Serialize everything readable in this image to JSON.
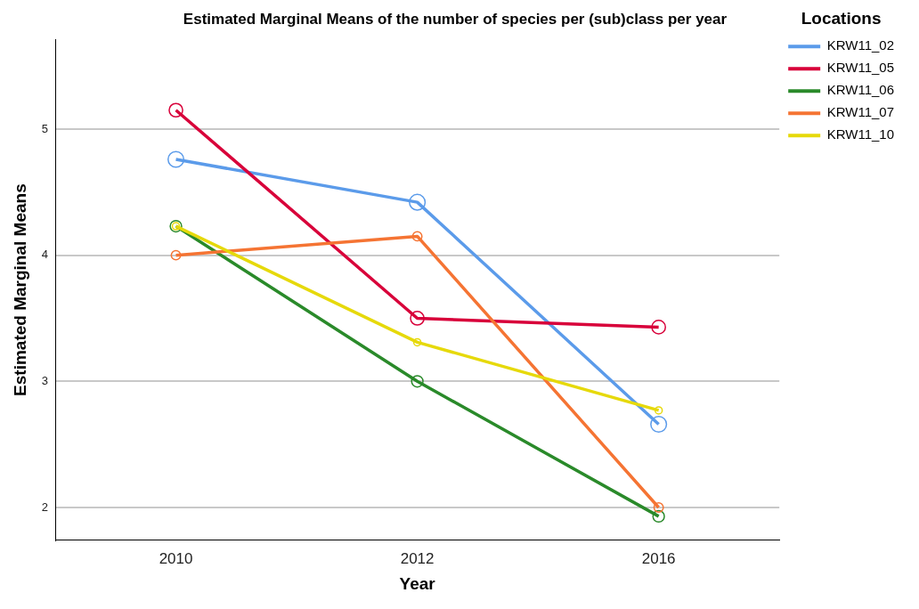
{
  "chart_data": {
    "type": "line",
    "title": "Estimated Marginal Means of the number of species per (sub)class per year",
    "xlabel": "Year",
    "ylabel": "Estimated Marginal Means",
    "legend_title": "Locations",
    "categories": [
      "2010",
      "2012",
      "2016"
    ],
    "series": [
      {
        "name": "KRW11_02",
        "color": "#5b9bea",
        "values": [
          4.76,
          4.42,
          2.66
        ]
      },
      {
        "name": "KRW11_05",
        "color": "#d8003a",
        "values": [
          5.15,
          3.5,
          3.43
        ]
      },
      {
        "name": "KRW11_06",
        "color": "#2a8a2a",
        "values": [
          4.23,
          3.0,
          1.93
        ]
      },
      {
        "name": "KRW11_07",
        "color": "#f57433",
        "values": [
          4.0,
          4.15,
          2.0
        ]
      },
      {
        "name": "KRW11_10",
        "color": "#e6d90a",
        "values": [
          4.23,
          3.31,
          2.77
        ]
      }
    ],
    "ylim": [
      1.74,
      5.71
    ],
    "yticks": [
      2,
      3,
      4,
      5
    ],
    "grid": "y",
    "legend": "top right",
    "marker": "circle",
    "line_style": "solid"
  }
}
